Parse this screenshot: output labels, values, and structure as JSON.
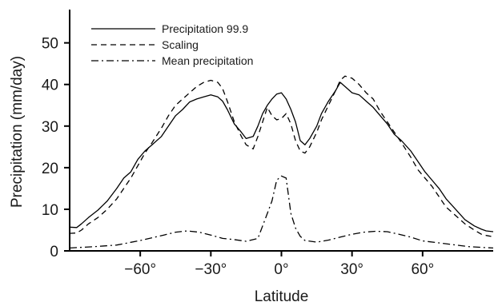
{
  "chart_data": {
    "type": "line",
    "title": "",
    "xlabel": "Latitude",
    "ylabel": "Precipitation (mm/day)",
    "xlim": [
      -90,
      90
    ],
    "ylim": [
      0,
      58
    ],
    "grid": false,
    "legend_position": "top-left",
    "x_ticks": [
      {
        "value": -60,
        "label": "−60°"
      },
      {
        "value": -30,
        "label": "−30°"
      },
      {
        "value": 0,
        "label": "0°"
      },
      {
        "value": 30,
        "label": "30°"
      },
      {
        "value": 60,
        "label": "60°"
      }
    ],
    "y_ticks": [
      {
        "value": 0,
        "label": "0"
      },
      {
        "value": 10,
        "label": "10"
      },
      {
        "value": 20,
        "label": "20"
      },
      {
        "value": 30,
        "label": "30"
      },
      {
        "value": 40,
        "label": "40"
      },
      {
        "value": 50,
        "label": "50"
      }
    ],
    "series": [
      {
        "name": "Precipitation 99.9",
        "style": "solid",
        "color": "#000000",
        "x": [
          -90,
          -87,
          -85,
          -82,
          -78,
          -74,
          -70,
          -67,
          -64,
          -61,
          -58,
          -55,
          -51,
          -48,
          -45,
          -42,
          -39,
          -36,
          -33,
          -30,
          -27,
          -25,
          -23,
          -20,
          -17,
          -15,
          -12,
          -10,
          -8,
          -6,
          -4,
          -2,
          0,
          2,
          4,
          6,
          8,
          10,
          12,
          15,
          17,
          20,
          23,
          25,
          27,
          30,
          33,
          36,
          39,
          42,
          45,
          48,
          51,
          55,
          58,
          61,
          64,
          67,
          70,
          74,
          78,
          82,
          85,
          87,
          90
        ],
        "y": [
          5.7,
          5.6,
          6.5,
          8.0,
          9.8,
          12.0,
          15.0,
          17.5,
          19.0,
          22.0,
          24.0,
          25.5,
          27.5,
          30.0,
          32.5,
          34.0,
          35.8,
          36.5,
          37.0,
          37.5,
          37.0,
          36.0,
          34.0,
          30.5,
          28.5,
          27.0,
          27.5,
          30.0,
          33.0,
          35.0,
          36.5,
          37.7,
          38.0,
          36.5,
          34.0,
          31.0,
          26.5,
          25.5,
          27.0,
          30.0,
          33.0,
          36.0,
          38.5,
          40.5,
          39.5,
          38.0,
          37.5,
          36.0,
          34.5,
          32.5,
          30.5,
          28.0,
          26.5,
          24.0,
          21.5,
          19.0,
          17.0,
          15.0,
          12.5,
          10.0,
          7.5,
          6.0,
          5.2,
          4.8,
          4.6
        ]
      },
      {
        "name": "Scaling",
        "style": "dashed",
        "color": "#000000",
        "x": [
          -90,
          -87,
          -85,
          -82,
          -78,
          -74,
          -70,
          -67,
          -64,
          -61,
          -58,
          -55,
          -51,
          -48,
          -45,
          -42,
          -39,
          -36,
          -33,
          -30,
          -27,
          -25,
          -23,
          -20,
          -17,
          -15,
          -12,
          -10,
          -8,
          -6,
          -4,
          -2,
          0,
          2,
          4,
          6,
          8,
          10,
          12,
          15,
          17,
          20,
          23,
          25,
          27,
          30,
          33,
          36,
          39,
          42,
          45,
          48,
          51,
          55,
          58,
          61,
          64,
          67,
          70,
          74,
          78,
          82,
          85,
          87,
          90
        ],
        "y": [
          4.2,
          4.3,
          5.0,
          6.5,
          8.0,
          10.0,
          12.5,
          15.0,
          17.5,
          20.5,
          23.5,
          26.0,
          29.5,
          32.5,
          35.0,
          36.5,
          38.0,
          39.5,
          40.5,
          41.0,
          40.5,
          39.0,
          36.0,
          31.0,
          27.5,
          25.5,
          24.5,
          27.5,
          31.0,
          34.5,
          32.5,
          31.5,
          31.8,
          33.0,
          30.5,
          26.5,
          24.0,
          23.5,
          25.0,
          28.5,
          31.5,
          35.0,
          38.5,
          41.0,
          42.0,
          41.5,
          40.0,
          38.0,
          36.5,
          33.5,
          31.0,
          28.5,
          26.0,
          22.5,
          19.5,
          17.5,
          15.5,
          13.0,
          10.5,
          8.5,
          6.5,
          5.0,
          4.0,
          3.7,
          3.4
        ]
      },
      {
        "name": "Mean precipitation",
        "style": "dashdot",
        "color": "#000000",
        "x": [
          -90,
          -80,
          -70,
          -60,
          -50,
          -45,
          -40,
          -35,
          -30,
          -25,
          -20,
          -15,
          -10,
          -8,
          -6,
          -4,
          -2,
          0,
          2,
          4,
          6,
          8,
          10,
          15,
          20,
          25,
          30,
          35,
          40,
          45,
          50,
          55,
          60,
          70,
          80,
          90
        ],
        "y": [
          0.7,
          1.0,
          1.4,
          2.5,
          3.8,
          4.5,
          4.8,
          4.5,
          3.8,
          3.0,
          2.7,
          2.3,
          3.0,
          6.0,
          9.0,
          12.0,
          17.0,
          18.0,
          17.5,
          9.0,
          5.5,
          3.5,
          2.5,
          2.1,
          2.6,
          3.3,
          4.0,
          4.5,
          4.7,
          4.6,
          4.0,
          3.3,
          2.4,
          1.7,
          1.0,
          0.7
        ]
      }
    ]
  }
}
